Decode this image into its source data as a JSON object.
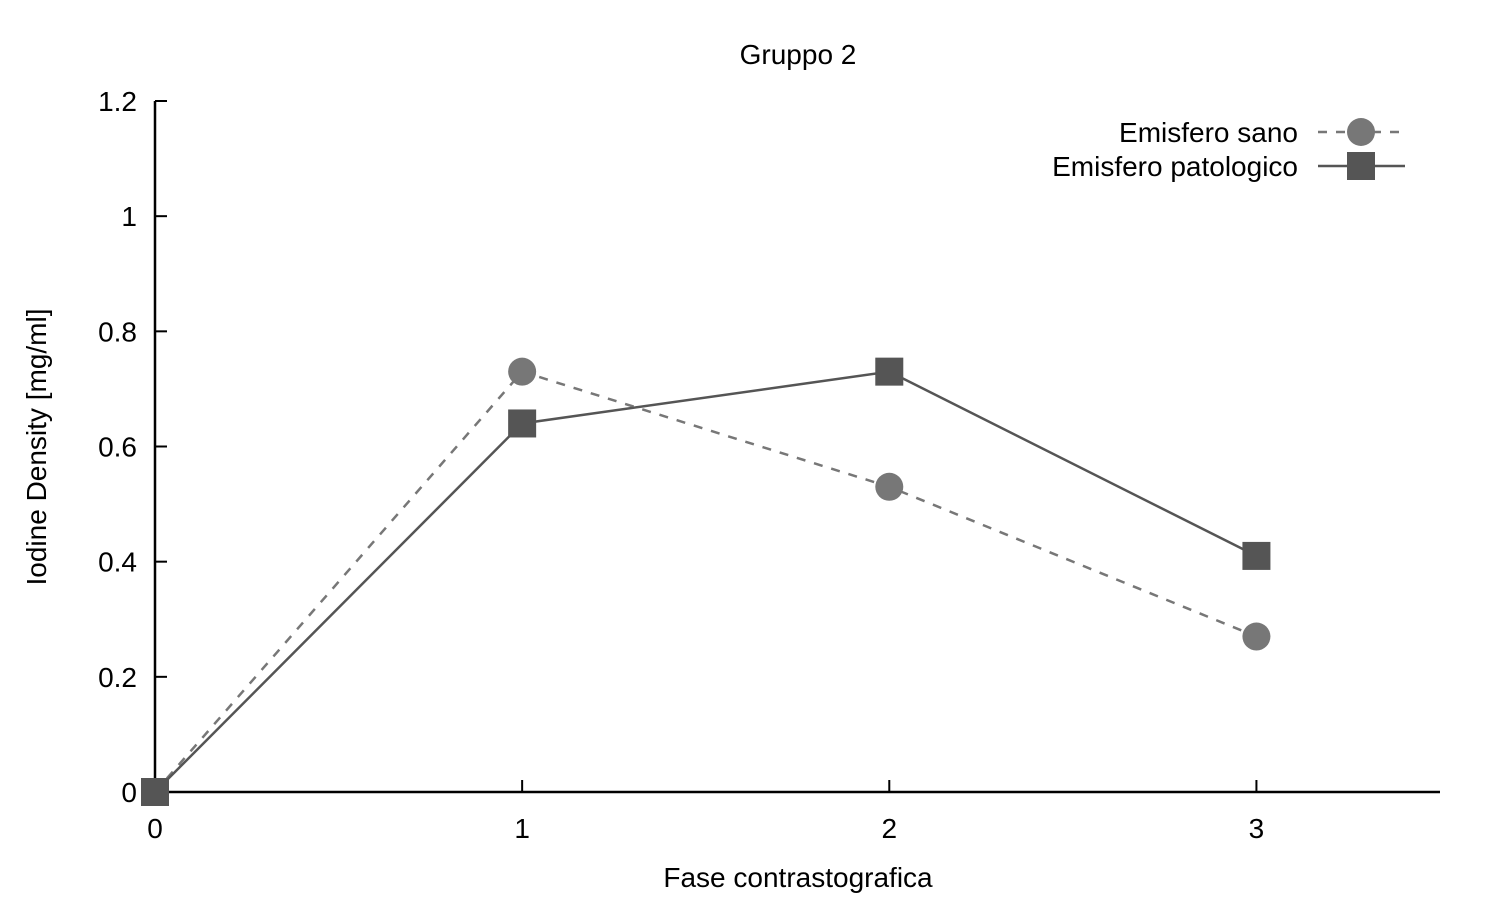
{
  "chart_data": {
    "type": "line",
    "title": "Gruppo 2",
    "xlabel": "Fase contrastografica",
    "ylabel": "Iodine Density [mg/ml]",
    "x": [
      0,
      1,
      2,
      3
    ],
    "xlim": [
      0,
      3.5
    ],
    "ylim": [
      0,
      1.2
    ],
    "xticks": [
      "0",
      "1",
      "2",
      "3"
    ],
    "yticks": [
      "0",
      "0.2",
      "0.4",
      "0.6",
      "0.8",
      "1",
      "1.2"
    ],
    "grid": false,
    "legend_position": "top-right",
    "series": [
      {
        "name": "Emisfero sano",
        "values": [
          0,
          0.73,
          0.53,
          0.27
        ],
        "color": "#777777",
        "line": "dashed",
        "marker": "circle"
      },
      {
        "name": "Emisfero patologico",
        "values": [
          0,
          0.64,
          0.73,
          0.41
        ],
        "color": "#555555",
        "line": "solid",
        "marker": "square"
      }
    ]
  }
}
